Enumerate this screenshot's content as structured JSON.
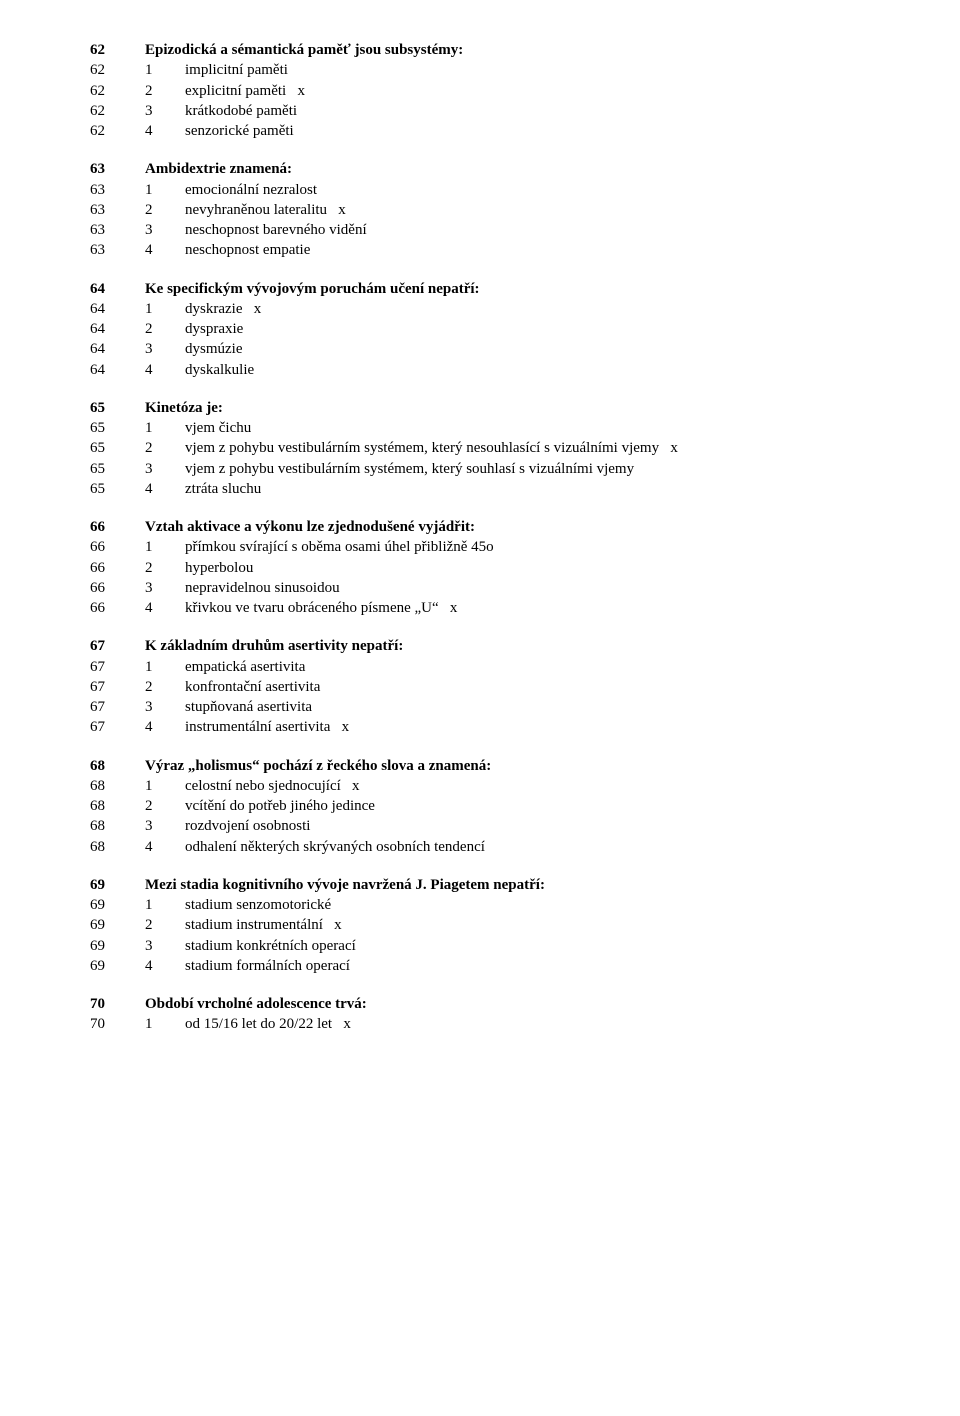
{
  "text_color": "#000000",
  "background_color": "#ffffff",
  "font_family": "Times New Roman",
  "font_size_pt": 12,
  "questions": [
    {
      "num": "62",
      "title": "Epizodická a sémantická paměť jsou subsystémy:",
      "answers": [
        {
          "n": "1",
          "text": "implicitní paměti",
          "mark": ""
        },
        {
          "n": "2",
          "text": "explicitní paměti",
          "mark": "x"
        },
        {
          "n": "3",
          "text": "krátkodobé paměti",
          "mark": ""
        },
        {
          "n": "4",
          "text": "senzorické paměti",
          "mark": ""
        }
      ]
    },
    {
      "num": "63",
      "title": "Ambidextrie znamená:",
      "answers": [
        {
          "n": "1",
          "text": "emocionální nezralost",
          "mark": ""
        },
        {
          "n": "2",
          "text": "nevyhraněnou lateralitu",
          "mark": "x"
        },
        {
          "n": "3",
          "text": "neschopnost barevného vidění",
          "mark": ""
        },
        {
          "n": "4",
          "text": "neschopnost empatie",
          "mark": ""
        }
      ]
    },
    {
      "num": "64",
      "title": "Ke specifickým vývojovým poruchám učení nepatří:",
      "answers": [
        {
          "n": "1",
          "text": "dyskrazie",
          "mark": "x"
        },
        {
          "n": "2",
          "text": "dyspraxie",
          "mark": ""
        },
        {
          "n": "3",
          "text": "dysmúzie",
          "mark": ""
        },
        {
          "n": "4",
          "text": "dyskalkulie",
          "mark": ""
        }
      ]
    },
    {
      "num": "65",
      "title": "Kinetóza je:",
      "answers": [
        {
          "n": "1",
          "text": "vjem čichu",
          "mark": ""
        },
        {
          "n": "2",
          "text": "vjem z pohybu vestibulárním systémem, který nesouhlasící s vizuálními vjemy",
          "mark": "x"
        },
        {
          "n": "3",
          "text": "vjem z pohybu vestibulárním systémem, který souhlasí s vizuálními vjemy",
          "mark": ""
        },
        {
          "n": "4",
          "text": "ztráta sluchu",
          "mark": ""
        }
      ]
    },
    {
      "num": "66",
      "title": "Vztah aktivace a výkonu lze zjednodušené vyjádřit:",
      "answers": [
        {
          "n": "1",
          "text": "přímkou svírající s oběma osami úhel přibližně 45o",
          "mark": ""
        },
        {
          "n": "2",
          "text": "hyperbolou",
          "mark": ""
        },
        {
          "n": "3",
          "text": "nepravidelnou sinusoidou",
          "mark": ""
        },
        {
          "n": "4",
          "text": "křivkou ve tvaru obráceného písmene „U“",
          "mark": "x"
        }
      ]
    },
    {
      "num": "67",
      "title": "K základním druhům asertivity nepatří:",
      "answers": [
        {
          "n": "1",
          "text": "empatická asertivita",
          "mark": ""
        },
        {
          "n": "2",
          "text": "konfrontační asertivita",
          "mark": ""
        },
        {
          "n": "3",
          "text": "stupňovaná asertivita",
          "mark": ""
        },
        {
          "n": "4",
          "text": "instrumentální asertivita",
          "mark": "x"
        }
      ]
    },
    {
      "num": "68",
      "title": "Výraz „holismus“ pochází z řeckého slova a znamená:",
      "answers": [
        {
          "n": "1",
          "text": "celostní nebo sjednocující",
          "mark": "x"
        },
        {
          "n": "2",
          "text": "vcítění do potřeb jiného jedince",
          "mark": ""
        },
        {
          "n": "3",
          "text": "rozdvojení osobnosti",
          "mark": ""
        },
        {
          "n": "4",
          "text": "odhalení některých skrývaných osobních tendencí",
          "mark": ""
        }
      ]
    },
    {
      "num": "69",
      "title": "Mezi stadia kognitivního vývoje navržená J. Piagetem nepatří:",
      "answers": [
        {
          "n": "1",
          "text": "stadium senzomotorické",
          "mark": ""
        },
        {
          "n": "2",
          "text": "stadium instrumentální",
          "mark": "x"
        },
        {
          "n": "3",
          "text": "stadium konkrétních operací",
          "mark": ""
        },
        {
          "n": "4",
          "text": "stadium formálních operací",
          "mark": ""
        }
      ]
    },
    {
      "num": "70",
      "title": "Období vrcholné adolescence trvá:",
      "answers": [
        {
          "n": "1",
          "text": "od 15/16 let do 20/22 let",
          "mark": "x"
        }
      ]
    }
  ]
}
